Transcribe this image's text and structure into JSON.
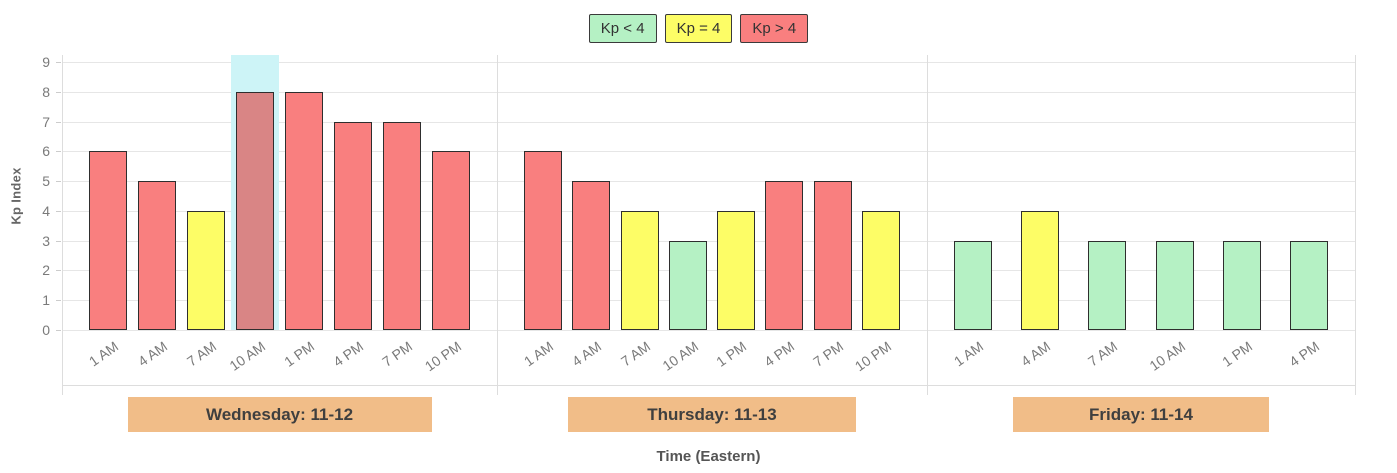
{
  "legend": {
    "items": [
      {
        "id": "kp-below-4",
        "label": "Kp < 4",
        "color": "#b5f1c4"
      },
      {
        "id": "kp-equal-4",
        "label": "Kp = 4",
        "color": "#fdfd66"
      },
      {
        "id": "kp-above-4",
        "label": "Kp > 4",
        "color": "#f97f7f"
      }
    ]
  },
  "chart_data": {
    "type": "bar",
    "title": "",
    "ylabel": "Kp Index",
    "xlabel": "Time (Eastern)",
    "ylim": [
      0,
      9
    ],
    "yticks": [
      0,
      1,
      2,
      3,
      4,
      5,
      6,
      7,
      8,
      9
    ],
    "grid": true,
    "legend_position": "top-center",
    "color_rule": {
      "below_4": "#b5f1c4",
      "equal_4": "#fdfd66",
      "above_4": "#f97f7f"
    },
    "bar_border_color": "#2e2e2e",
    "highlight": {
      "panel_index": 0,
      "bar_index": 3,
      "band_color": "#cdf4f7",
      "bar_color": "#d98585"
    },
    "panels": [
      {
        "label": "Wednesday: 11-12",
        "banner_color": "#f1bd88",
        "categories": [
          "1 AM",
          "4 AM",
          "7 AM",
          "10 AM",
          "1 PM",
          "4 PM",
          "7 PM",
          "10 PM"
        ],
        "values": [
          6,
          5,
          4,
          8,
          8,
          7,
          7,
          6
        ]
      },
      {
        "label": "Thursday: 11-13",
        "banner_color": "#f1bd88",
        "categories": [
          "1 AM",
          "4 AM",
          "7 AM",
          "10 AM",
          "1 PM",
          "4 PM",
          "7 PM",
          "10 PM"
        ],
        "values": [
          6,
          5,
          4,
          3,
          4,
          5,
          5,
          4
        ]
      },
      {
        "label": "Friday: 11-14",
        "banner_color": "#f1bd88",
        "categories": [
          "1 AM",
          "4 AM",
          "7 AM",
          "10 AM",
          "1 PM",
          "4 PM"
        ],
        "values": [
          3,
          4,
          3,
          3,
          3,
          3
        ]
      }
    ]
  }
}
